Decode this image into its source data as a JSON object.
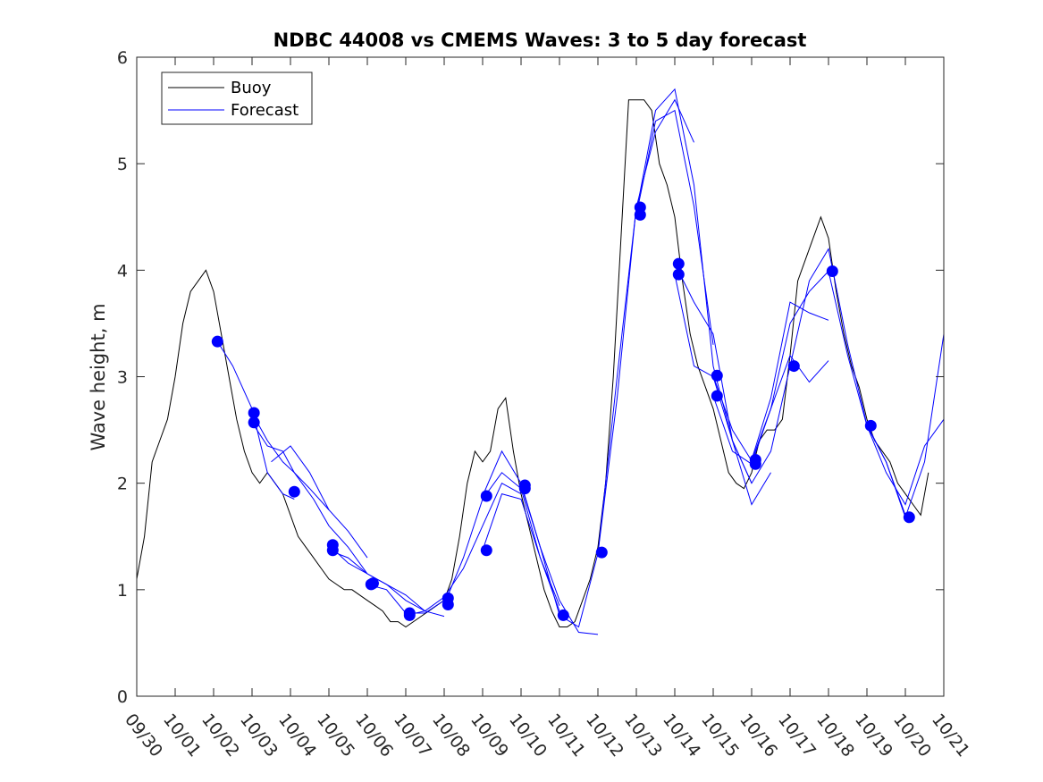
{
  "chart_data": {
    "type": "line",
    "title": "NDBC 44008 vs CMEMS Waves: 3 to 5 day forecast",
    "xlabel": "",
    "ylabel": "Wave height, m",
    "xlim": [
      0,
      21
    ],
    "ylim": [
      0,
      6
    ],
    "x_unit": "days since 09/30",
    "x_ticks": [
      "09/30",
      "10/01",
      "10/02",
      "10/03",
      "10/04",
      "10/05",
      "10/06",
      "10/07",
      "10/08",
      "10/09",
      "10/10",
      "10/11",
      "10/12",
      "10/13",
      "10/14",
      "10/15",
      "10/16",
      "10/17",
      "10/18",
      "10/19",
      "10/20",
      "10/21"
    ],
    "y_ticks": [
      "0",
      "1",
      "2",
      "3",
      "4",
      "5",
      "6"
    ],
    "grid": false,
    "legend_position": "top-left",
    "legend": [
      "Buoy",
      "Forecast"
    ],
    "colors": {
      "buoy": "#000000",
      "forecast": "#0000ff",
      "axis": "#262626"
    },
    "buoy": {
      "name": "Buoy",
      "x": [
        0,
        0.2,
        0.4,
        0.6,
        0.8,
        1.0,
        1.2,
        1.4,
        1.6,
        1.8,
        2.0,
        2.2,
        2.4,
        2.6,
        2.8,
        3.0,
        3.2,
        3.4,
        3.6,
        3.8,
        4.0,
        4.2,
        4.4,
        4.6,
        4.8,
        5.0,
        5.2,
        5.4,
        5.6,
        5.8,
        6.0,
        6.2,
        6.4,
        6.6,
        6.8,
        7.0,
        7.2,
        7.4,
        7.6,
        7.8,
        8.0,
        8.2,
        8.4,
        8.6,
        8.8,
        9.0,
        9.2,
        9.4,
        9.6,
        9.8,
        10.0,
        10.2,
        10.4,
        10.6,
        10.8,
        11.0,
        11.2,
        11.4,
        11.6,
        11.8,
        12.0,
        12.2,
        12.4,
        12.6,
        12.8,
        13.0,
        13.2,
        13.4,
        13.6,
        13.8,
        14.0,
        14.2,
        14.4,
        14.6,
        14.8,
        15.0,
        15.2,
        15.4,
        15.6,
        15.8,
        16.0,
        16.2,
        16.4,
        16.6,
        16.8,
        17.0,
        17.2,
        17.4,
        17.6,
        17.8,
        18.0,
        18.2,
        18.4,
        18.6,
        18.8,
        19.0,
        19.2,
        19.4,
        19.6,
        19.8,
        20.0,
        20.2,
        20.4,
        20.6
      ],
      "values": [
        1.1,
        1.5,
        2.2,
        2.4,
        2.6,
        3.0,
        3.5,
        3.8,
        3.9,
        4.0,
        3.8,
        3.4,
        3.0,
        2.6,
        2.3,
        2.1,
        2.0,
        2.1,
        2.0,
        1.9,
        1.7,
        1.5,
        1.4,
        1.3,
        1.2,
        1.1,
        1.05,
        1.0,
        1.0,
        0.95,
        0.9,
        0.85,
        0.8,
        0.7,
        0.7,
        0.65,
        0.7,
        0.75,
        0.8,
        0.85,
        0.9,
        1.1,
        1.5,
        2.0,
        2.3,
        2.2,
        2.3,
        2.7,
        2.8,
        2.3,
        1.9,
        1.6,
        1.3,
        1.0,
        0.8,
        0.65,
        0.65,
        0.7,
        0.9,
        1.1,
        1.4,
        2.0,
        3.0,
        4.3,
        5.6,
        5.6,
        5.6,
        5.5,
        5.0,
        4.8,
        4.5,
        3.9,
        3.4,
        3.1,
        2.9,
        2.7,
        2.4,
        2.1,
        2.0,
        1.95,
        2.1,
        2.4,
        2.5,
        2.5,
        2.6,
        3.2,
        3.9,
        4.1,
        4.3,
        4.5,
        4.3,
        3.8,
        3.4,
        3.1,
        2.9,
        2.6,
        2.4,
        2.3,
        2.2,
        2.0,
        1.9,
        1.8,
        1.7,
        2.1
      ]
    },
    "forecast": {
      "name": "Forecast",
      "series": [
        {
          "x": [
            2.1,
            2.5,
            3.0,
            3.4,
            3.8,
            4.1
          ],
          "values": [
            3.33,
            3.1,
            2.7,
            2.1,
            1.9,
            1.85
          ]
        },
        {
          "x": [
            3.0,
            3.4,
            3.8,
            4.1,
            4.5,
            5.0
          ],
          "values": [
            2.66,
            2.4,
            2.2,
            2.1,
            1.95,
            1.75
          ]
        },
        {
          "x": [
            3.0,
            3.4,
            3.8,
            4.1,
            4.6,
            5.0,
            5.5,
            6.0
          ],
          "values": [
            2.57,
            2.35,
            2.3,
            2.1,
            1.85,
            1.6,
            1.4,
            1.15
          ]
        },
        {
          "x": [
            3.5,
            4.0,
            4.5,
            5.0,
            5.5,
            6.0
          ],
          "values": [
            2.2,
            2.35,
            2.1,
            1.75,
            1.55,
            1.3
          ]
        },
        {
          "x": [
            5.0,
            5.5,
            6.0,
            6.5,
            7.0,
            7.5
          ],
          "values": [
            1.42,
            1.25,
            1.15,
            1.05,
            0.95,
            0.8
          ]
        },
        {
          "x": [
            5.0,
            5.5,
            6.0,
            6.5,
            7.0,
            7.5,
            8.0
          ],
          "values": [
            1.37,
            1.3,
            1.15,
            1.05,
            0.9,
            0.8,
            0.75
          ]
        },
        {
          "x": [
            6.0,
            6.5,
            7.0,
            7.5,
            8.0
          ],
          "values": [
            1.05,
            1.0,
            0.78,
            0.78,
            0.9
          ]
        },
        {
          "x": [
            7.0,
            7.5,
            8.0,
            8.5,
            9.0,
            9.5,
            10.0
          ],
          "values": [
            0.76,
            0.8,
            0.93,
            1.2,
            1.6,
            2.0,
            1.9
          ]
        },
        {
          "x": [
            8.0,
            8.5,
            9.0,
            9.5,
            10.0,
            10.5,
            11.0
          ],
          "values": [
            0.86,
            1.3,
            1.85,
            2.1,
            1.95,
            1.3,
            0.8
          ]
        },
        {
          "x": [
            9.0,
            9.5,
            10.0,
            10.5,
            11.0,
            11.5,
            12.0
          ],
          "values": [
            1.88,
            2.3,
            2.0,
            1.4,
            0.9,
            0.6,
            0.58
          ]
        },
        {
          "x": [
            9.0,
            9.5,
            10.0,
            10.5,
            11.0
          ],
          "values": [
            1.37,
            1.9,
            1.85,
            1.3,
            0.85
          ]
        },
        {
          "x": [
            10.0,
            10.5,
            11.0,
            11.5,
            12.0,
            12.5,
            13.0
          ],
          "values": [
            1.98,
            1.4,
            0.76,
            0.65,
            1.34,
            2.8,
            4.6
          ]
        },
        {
          "x": [
            12.0,
            12.5,
            13.0,
            13.5,
            14.0,
            14.5
          ],
          "values": [
            1.34,
            3.0,
            4.59,
            5.3,
            5.6,
            5.2
          ]
        },
        {
          "x": [
            13.0,
            13.5,
            14.0,
            14.5,
            15.0
          ],
          "values": [
            4.52,
            5.4,
            5.5,
            4.6,
            3.3
          ]
        },
        {
          "x": [
            13.0,
            13.5,
            14.0,
            14.5,
            15.0,
            15.5,
            16.0
          ],
          "values": [
            4.55,
            5.5,
            5.7,
            4.8,
            3.1,
            2.4,
            2.0
          ]
        },
        {
          "x": [
            14.0,
            14.5,
            15.0,
            15.5,
            16.0,
            16.5
          ],
          "values": [
            4.06,
            3.7,
            3.4,
            2.4,
            1.8,
            2.1
          ]
        },
        {
          "x": [
            14.0,
            14.5,
            15.0,
            15.5,
            16.0,
            16.5,
            17.0
          ],
          "values": [
            3.96,
            3.1,
            3.0,
            2.4,
            2.0,
            2.3,
            3.1
          ]
        },
        {
          "x": [
            15.0,
            15.5,
            16.0,
            16.5,
            17.0,
            17.5,
            18.0
          ],
          "values": [
            3.01,
            2.5,
            2.21,
            2.7,
            3.5,
            3.8,
            3.99
          ]
        },
        {
          "x": [
            15.0,
            15.5,
            16.0,
            16.5,
            17.0,
            17.5,
            18.0
          ],
          "values": [
            2.82,
            2.3,
            2.18,
            2.7,
            3.2,
            2.95,
            3.15
          ]
        },
        {
          "x": [
            16.0,
            16.5,
            17.0,
            17.5,
            18.0
          ],
          "values": [
            2.22,
            2.8,
            3.7,
            3.6,
            3.53
          ]
        },
        {
          "x": [
            17.0,
            17.5,
            18.0,
            18.5,
            19.0,
            19.5,
            20.0
          ],
          "values": [
            3.1,
            3.9,
            4.2,
            3.3,
            2.55,
            2.2,
            1.7
          ]
        },
        {
          "x": [
            18.0,
            18.5,
            19.0,
            19.5,
            20.0,
            20.5,
            21.0
          ],
          "values": [
            3.99,
            3.2,
            2.54,
            2.2,
            1.68,
            2.2,
            3.4
          ]
        },
        {
          "x": [
            19.0,
            19.5,
            20.0,
            20.5,
            21.0
          ],
          "values": [
            2.54,
            2.1,
            1.8,
            2.35,
            2.6
          ]
        }
      ],
      "markers": [
        {
          "x": 2.1,
          "y": 3.33
        },
        {
          "x": 3.05,
          "y": 2.66
        },
        {
          "x": 3.05,
          "y": 2.57
        },
        {
          "x": 4.1,
          "y": 1.92
        },
        {
          "x": 5.1,
          "y": 1.42
        },
        {
          "x": 5.1,
          "y": 1.37
        },
        {
          "x": 6.1,
          "y": 1.05
        },
        {
          "x": 6.15,
          "y": 1.06
        },
        {
          "x": 7.1,
          "y": 0.76
        },
        {
          "x": 7.1,
          "y": 0.78
        },
        {
          "x": 8.1,
          "y": 0.92
        },
        {
          "x": 8.1,
          "y": 0.86
        },
        {
          "x": 9.1,
          "y": 1.88
        },
        {
          "x": 9.1,
          "y": 1.37
        },
        {
          "x": 10.1,
          "y": 1.98
        },
        {
          "x": 10.1,
          "y": 1.95
        },
        {
          "x": 11.1,
          "y": 0.76
        },
        {
          "x": 12.1,
          "y": 1.35
        },
        {
          "x": 13.1,
          "y": 4.59
        },
        {
          "x": 13.1,
          "y": 4.52
        },
        {
          "x": 14.1,
          "y": 4.06
        },
        {
          "x": 14.1,
          "y": 3.96
        },
        {
          "x": 15.1,
          "y": 3.01
        },
        {
          "x": 15.1,
          "y": 2.82
        },
        {
          "x": 16.1,
          "y": 2.22
        },
        {
          "x": 16.1,
          "y": 2.18
        },
        {
          "x": 17.1,
          "y": 3.1
        },
        {
          "x": 18.1,
          "y": 3.99
        },
        {
          "x": 19.1,
          "y": 2.54
        },
        {
          "x": 20.1,
          "y": 1.68
        }
      ]
    }
  }
}
